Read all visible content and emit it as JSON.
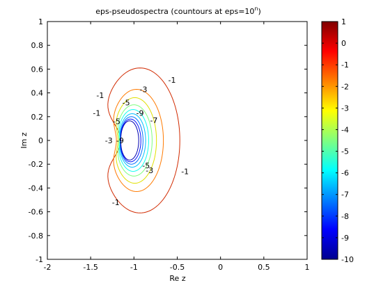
{
  "chart_data": {
    "type": "contour",
    "title_main": "eps-pseudospectra (countours at eps=10",
    "title_sup": "n",
    "title_end": ")",
    "xlabel": "Re z",
    "ylabel": "Im z",
    "xlim": [
      -2,
      1
    ],
    "ylim": [
      -1,
      1
    ],
    "xticks": [
      -2,
      -1.5,
      -1,
      -0.5,
      0,
      0.5,
      1
    ],
    "xtick_labels": [
      "-2",
      "-1.5",
      "-1",
      "-0.5",
      "0",
      "0.5",
      "1"
    ],
    "yticks": [
      -1,
      -0.8,
      -0.6,
      -0.4,
      -0.2,
      0,
      0.2,
      0.4,
      0.6,
      0.8,
      1
    ],
    "ytick_labels": [
      "-1",
      "-0.8",
      "-0.6",
      "-0.4",
      "-0.2",
      "0",
      "0.2",
      "0.4",
      "0.6",
      "0.8",
      "1"
    ],
    "colorbar": {
      "range": [
        -10,
        1
      ],
      "ticks": [
        -10,
        -9,
        -8,
        -7,
        -6,
        -5,
        -4,
        -3,
        -2,
        -1,
        0,
        1
      ],
      "tick_labels": [
        "-10",
        "-9",
        "-8",
        "-7",
        "-6",
        "-5",
        "-4",
        "-3",
        "-2",
        "-1",
        "0",
        "1"
      ],
      "colormap": "jet"
    },
    "contours": [
      {
        "level": -1,
        "color": "#d12a00",
        "cx": -0.93,
        "cy": 0.0,
        "rx": 0.46,
        "ry": 0.61,
        "dent": 0.52
      },
      {
        "level": -2,
        "color": "#ff7a00",
        "cx": -0.97,
        "cy": 0.0,
        "rx": 0.31,
        "ry": 0.43,
        "dent": 0.25
      },
      {
        "level": -3,
        "color": "#e0e000",
        "cx": -0.99,
        "cy": 0.0,
        "rx": 0.25,
        "ry": 0.36,
        "dent": 0.22
      },
      {
        "level": -4,
        "color": "#7dff7d",
        "cx": -1.0,
        "cy": 0.0,
        "rx": 0.21,
        "ry": 0.3,
        "dent": 0.18
      },
      {
        "level": -5,
        "color": "#10ffee",
        "cx": -1.01,
        "cy": 0.0,
        "rx": 0.18,
        "ry": 0.26,
        "dent": 0.15
      },
      {
        "level": -6,
        "color": "#00c0ff",
        "cx": -1.02,
        "cy": 0.0,
        "rx": 0.155,
        "ry": 0.225,
        "dent": 0.12
      },
      {
        "level": -7,
        "color": "#0070ff",
        "cx": -1.03,
        "cy": 0.0,
        "rx": 0.135,
        "ry": 0.2,
        "dent": 0.09
      },
      {
        "level": -8,
        "color": "#0010ff",
        "cx": -1.04,
        "cy": 0.0,
        "rx": 0.12,
        "ry": 0.18,
        "dent": 0.06
      },
      {
        "level": -9,
        "color": "#0000b0",
        "cx": -1.05,
        "cy": 0.0,
        "rx": 0.105,
        "ry": 0.165,
        "dent": 0.03
      }
    ],
    "contour_labels": [
      {
        "text": "-1",
        "x": -0.56,
        "y": 0.51
      },
      {
        "text": "-1",
        "x": -1.39,
        "y": 0.38
      },
      {
        "text": "-1",
        "x": -1.43,
        "y": 0.23
      },
      {
        "text": "-1",
        "x": -0.41,
        "y": -0.26
      },
      {
        "text": "-1",
        "x": -1.21,
        "y": -0.52
      },
      {
        "text": "-3",
        "x": -0.89,
        "y": 0.43
      },
      {
        "text": "-3",
        "x": -1.29,
        "y": 0.0
      },
      {
        "text": "-3",
        "x": -0.82,
        "y": -0.25
      },
      {
        "text": "-5",
        "x": -1.09,
        "y": 0.32
      },
      {
        "text": "-5",
        "x": -1.2,
        "y": 0.16
      },
      {
        "text": "-5",
        "x": -0.86,
        "y": -0.21
      },
      {
        "text": "-7",
        "x": -0.77,
        "y": 0.17
      },
      {
        "text": "-9",
        "x": -0.93,
        "y": 0.23
      },
      {
        "text": "-9",
        "x": -1.16,
        "y": 0.0
      }
    ]
  }
}
